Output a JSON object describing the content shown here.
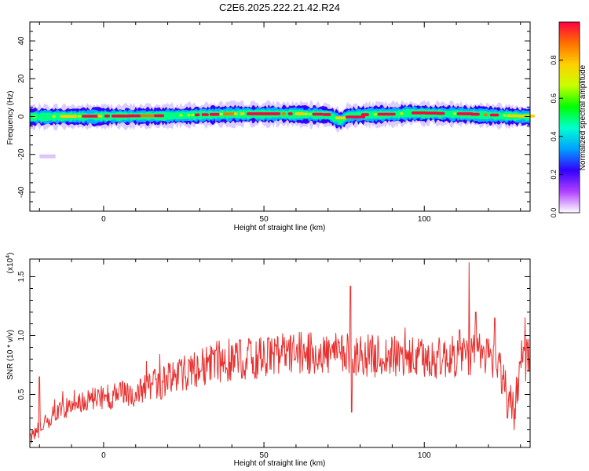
{
  "title": "C2E6.2025.222.21.42.R24",
  "chart_data": [
    {
      "type": "heatmap",
      "xlabel": "Height of straight line (km)",
      "ylabel": "Frequency (Hz)",
      "xlim": [
        -23,
        133
      ],
      "ylim": [
        -50,
        50
      ],
      "x_ticks": [
        0,
        50,
        100
      ],
      "y_ticks": [
        -40,
        -20,
        0,
        20,
        40
      ],
      "ridge": [
        [
          -23,
          0
        ],
        [
          20,
          0.5
        ],
        [
          30,
          1
        ],
        [
          40,
          1.5
        ],
        [
          60,
          1.5
        ],
        [
          70,
          1
        ],
        [
          72,
          -0.5
        ],
        [
          74,
          -2
        ],
        [
          76,
          0.5
        ],
        [
          80,
          1
        ],
        [
          92,
          1.5
        ],
        [
          95,
          2
        ],
        [
          110,
          1.5
        ],
        [
          133,
          0
        ]
      ],
      "ridge_halfwidth_hz": 3,
      "isolated_patch": {
        "x": [
          -20,
          -15
        ],
        "y": [
          -20,
          -22
        ]
      },
      "colorbar": {
        "label": "Normalized spectral amplitude",
        "range": [
          0.0,
          1.0
        ],
        "ticks": [
          "0.0",
          "0.2",
          "0.4",
          "0.6",
          "0.8"
        ],
        "colors": [
          "#ffffff",
          "#b040ff",
          "#3300ff",
          "#00a0ff",
          "#00ffd0",
          "#00ff00",
          "#c8ff00",
          "#ffd000",
          "#ff7000",
          "#ff0040"
        ]
      }
    },
    {
      "type": "line",
      "xlabel": "Height of straight line (km)",
      "ylabel": "SNR (10 * v/v)",
      "y_multiplier": "(x10^4)",
      "xlim": [
        -23,
        133
      ],
      "ylim": [
        0.05,
        1.65
      ],
      "x_ticks": [
        0,
        50,
        100
      ],
      "y_ticks": [
        "0.5",
        "1.0",
        "1.5"
      ],
      "series": [
        {
          "color": "#e8302e",
          "trend_x": [
            -23,
            -15,
            -5,
            10,
            20,
            35,
            50,
            60,
            75,
            90,
            100,
            110,
            118,
            122,
            126,
            128,
            130,
            133
          ],
          "trend_y": [
            0.12,
            0.35,
            0.45,
            0.52,
            0.62,
            0.78,
            0.82,
            0.85,
            0.84,
            0.82,
            0.8,
            0.82,
            0.85,
            0.8,
            0.55,
            0.4,
            0.72,
            0.85
          ],
          "spikes": [
            [
              -20,
              0.65
            ],
            [
              77,
              1.42
            ],
            [
              77.3,
              0.35
            ],
            [
              111,
              1.05
            ],
            [
              114,
              1.62
            ],
            [
              116,
              1.2
            ],
            [
              122,
              1.15
            ],
            [
              126,
              0.3
            ],
            [
              128,
              0.2
            ],
            [
              131,
              0.9
            ]
          ]
        }
      ]
    }
  ]
}
